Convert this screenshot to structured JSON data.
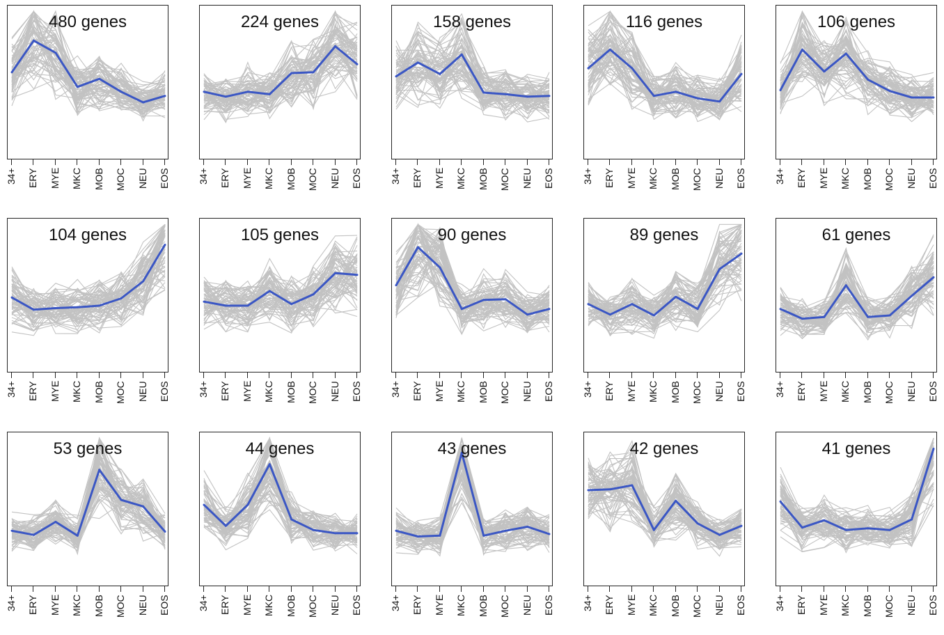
{
  "categories": [
    "34+",
    "ERY",
    "MYE",
    "MKC",
    "MOB",
    "MOC",
    "NEU",
    "EOS"
  ],
  "colors": {
    "mean_line": "#3a56c4",
    "gene_lines": "#c2c2c2",
    "frame": "#222222"
  },
  "chart_data": [
    {
      "type": "line",
      "title": "480 genes",
      "categories": [
        "34+",
        "ERY",
        "MYE",
        "MKC",
        "MOB",
        "MOC",
        "NEU",
        "EOS"
      ],
      "series": [
        {
          "values": [
            0.53,
            0.92,
            0.77,
            0.35,
            0.45,
            0.29,
            0.16,
            0.24
          ]
        }
      ],
      "ylim": [
        -0.5,
        1.3
      ]
    },
    {
      "type": "line",
      "title": "224 genes",
      "categories": [
        "34+",
        "ERY",
        "MYE",
        "MKC",
        "MOB",
        "MOC",
        "NEU",
        "EOS"
      ],
      "series": [
        {
          "values": [
            0.29,
            0.23,
            0.29,
            0.26,
            0.52,
            0.53,
            0.85,
            0.63
          ]
        }
      ],
      "ylim": [
        -0.5,
        1.3
      ]
    },
    {
      "type": "line",
      "title": "158 genes",
      "categories": [
        "34+",
        "ERY",
        "MYE",
        "MKC",
        "MOB",
        "MOC",
        "NEU",
        "EOS"
      ],
      "series": [
        {
          "values": [
            0.48,
            0.65,
            0.51,
            0.75,
            0.28,
            0.26,
            0.23,
            0.24
          ]
        }
      ],
      "ylim": [
        -0.5,
        1.3
      ]
    },
    {
      "type": "line",
      "title": "116 genes",
      "categories": [
        "34+",
        "ERY",
        "MYE",
        "MKC",
        "MOB",
        "MOC",
        "NEU",
        "EOS"
      ],
      "series": [
        {
          "values": [
            0.58,
            0.81,
            0.58,
            0.24,
            0.29,
            0.21,
            0.17,
            0.51
          ]
        }
      ],
      "ylim": [
        -0.5,
        1.3
      ]
    },
    {
      "type": "line",
      "title": "106 genes",
      "categories": [
        "34+",
        "ERY",
        "MYE",
        "MKC",
        "MOB",
        "MOC",
        "NEU",
        "EOS"
      ],
      "series": [
        {
          "values": [
            0.31,
            0.81,
            0.54,
            0.76,
            0.44,
            0.3,
            0.22,
            0.22
          ]
        }
      ],
      "ylim": [
        -0.5,
        1.3
      ]
    },
    {
      "type": "line",
      "title": "104 genes",
      "categories": [
        "34+",
        "ERY",
        "MYE",
        "MKC",
        "MOB",
        "MOC",
        "NEU",
        "EOS"
      ],
      "series": [
        {
          "values": [
            0.38,
            0.23,
            0.25,
            0.26,
            0.28,
            0.37,
            0.58,
            1.03
          ]
        }
      ],
      "ylim": [
        -0.5,
        1.3
      ]
    },
    {
      "type": "line",
      "title": "105 genes",
      "categories": [
        "34+",
        "ERY",
        "MYE",
        "MKC",
        "MOB",
        "MOC",
        "NEU",
        "EOS"
      ],
      "series": [
        {
          "values": [
            0.33,
            0.28,
            0.28,
            0.46,
            0.3,
            0.42,
            0.68,
            0.66
          ]
        }
      ],
      "ylim": [
        -0.5,
        1.3
      ]
    },
    {
      "type": "line",
      "title": "90 genes",
      "categories": [
        "34+",
        "ERY",
        "MYE",
        "MKC",
        "MOB",
        "MOC",
        "NEU",
        "EOS"
      ],
      "series": [
        {
          "values": [
            0.53,
            1.0,
            0.75,
            0.24,
            0.35,
            0.36,
            0.17,
            0.24
          ]
        }
      ],
      "ylim": [
        -0.5,
        1.3
      ]
    },
    {
      "type": "line",
      "title": "89 genes",
      "categories": [
        "34+",
        "ERY",
        "MYE",
        "MKC",
        "MOB",
        "MOC",
        "NEU",
        "EOS"
      ],
      "series": [
        {
          "values": [
            0.3,
            0.17,
            0.3,
            0.16,
            0.39,
            0.24,
            0.73,
            0.92
          ]
        }
      ],
      "ylim": [
        -0.5,
        1.3
      ]
    },
    {
      "type": "line",
      "title": "61 genes",
      "categories": [
        "34+",
        "ERY",
        "MYE",
        "MKC",
        "MOB",
        "MOC",
        "NEU",
        "EOS"
      ],
      "series": [
        {
          "values": [
            0.24,
            0.12,
            0.14,
            0.53,
            0.14,
            0.16,
            0.4,
            0.63
          ]
        }
      ],
      "ylim": [
        -0.5,
        1.3
      ]
    },
    {
      "type": "line",
      "title": "53 genes",
      "categories": [
        "34+",
        "ERY",
        "MYE",
        "MKC",
        "MOB",
        "MOC",
        "NEU",
        "EOS"
      ],
      "series": [
        {
          "values": [
            0.14,
            0.09,
            0.25,
            0.08,
            0.89,
            0.52,
            0.44,
            0.13
          ]
        }
      ],
      "ylim": [
        -0.5,
        1.3
      ]
    },
    {
      "type": "line",
      "title": "44 genes",
      "categories": [
        "34+",
        "ERY",
        "MYE",
        "MKC",
        "MOB",
        "MOC",
        "NEU",
        "EOS"
      ],
      "series": [
        {
          "values": [
            0.46,
            0.2,
            0.46,
            0.96,
            0.28,
            0.15,
            0.11,
            0.11
          ]
        }
      ],
      "ylim": [
        -0.5,
        1.3
      ]
    },
    {
      "type": "line",
      "title": "43 genes",
      "categories": [
        "34+",
        "ERY",
        "MYE",
        "MKC",
        "MOB",
        "MOC",
        "NEU",
        "EOS"
      ],
      "series": [
        {
          "values": [
            0.14,
            0.07,
            0.08,
            1.1,
            0.08,
            0.14,
            0.19,
            0.1
          ]
        }
      ],
      "ylim": [
        -0.5,
        1.3
      ]
    },
    {
      "type": "line",
      "title": "42 genes",
      "categories": [
        "34+",
        "ERY",
        "MYE",
        "MKC",
        "MOB",
        "MOC",
        "NEU",
        "EOS"
      ],
      "series": [
        {
          "values": [
            0.64,
            0.65,
            0.7,
            0.15,
            0.51,
            0.23,
            0.09,
            0.2
          ]
        }
      ],
      "ylim": [
        -0.5,
        1.3
      ]
    },
    {
      "type": "line",
      "title": "41 genes",
      "categories": [
        "34+",
        "ERY",
        "MYE",
        "MKC",
        "MOB",
        "MOC",
        "NEU",
        "EOS"
      ],
      "series": [
        {
          "values": [
            0.5,
            0.18,
            0.27,
            0.15,
            0.17,
            0.15,
            0.28,
            1.15
          ]
        }
      ],
      "ylim": [
        -0.5,
        1.3
      ]
    }
  ]
}
